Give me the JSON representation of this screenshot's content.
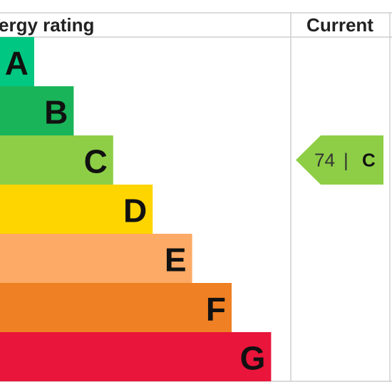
{
  "header": {
    "title": "ergy rating",
    "current": "Current"
  },
  "bands": [
    {
      "label": "A",
      "color": "#00c781"
    },
    {
      "label": "B",
      "color": "#19b459"
    },
    {
      "label": "C",
      "color": "#8dce46"
    },
    {
      "label": "D",
      "color": "#ffd500"
    },
    {
      "label": "E",
      "color": "#fcaa65"
    },
    {
      "label": "F",
      "color": "#ef8023"
    },
    {
      "label": "G",
      "color": "#e9153b"
    }
  ],
  "current": {
    "score": 74,
    "separator": "|",
    "band": "C",
    "color": "#8dce46"
  }
}
